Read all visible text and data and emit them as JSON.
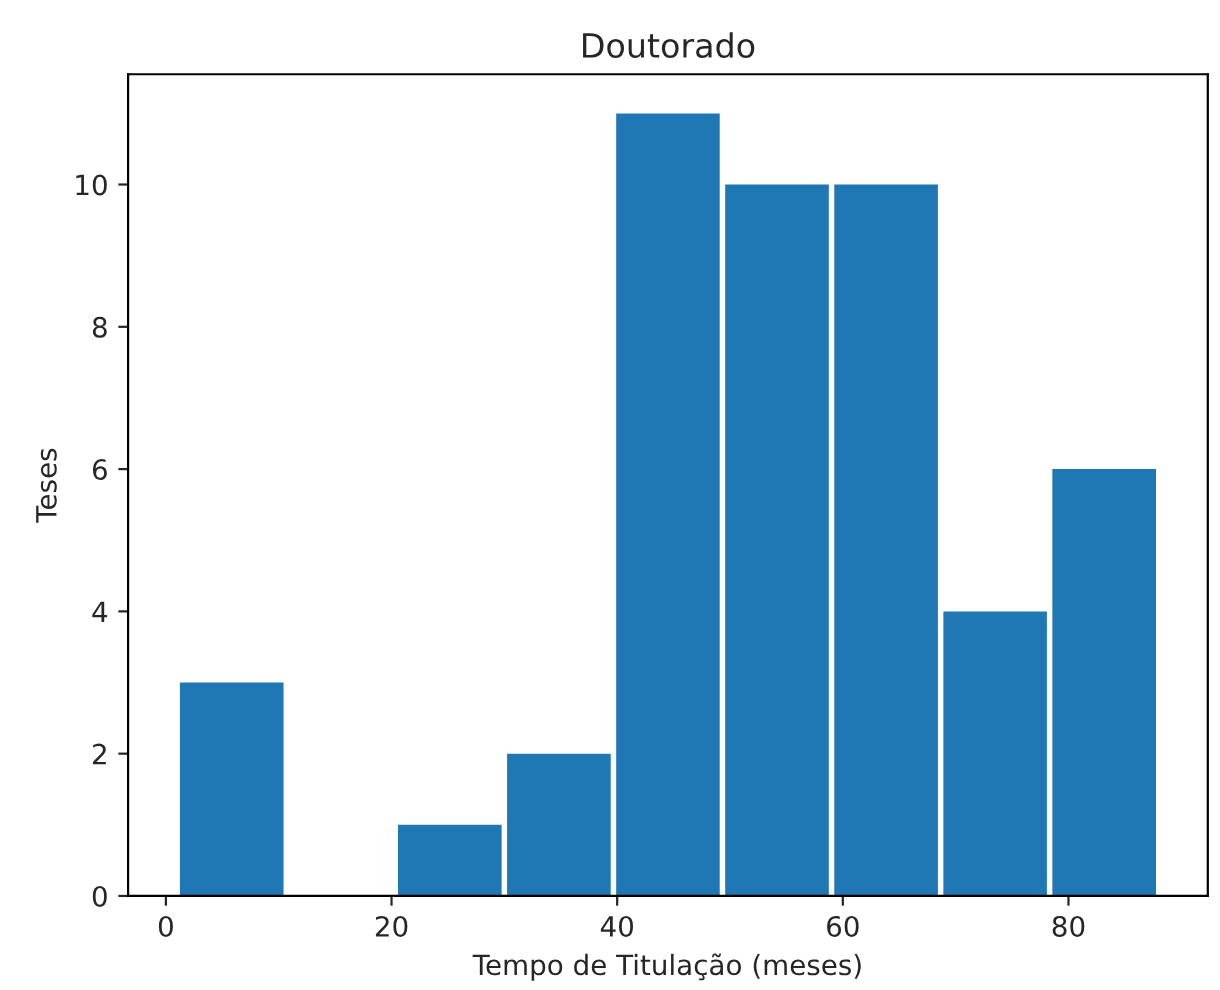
{
  "chart_data": {
    "type": "histogram",
    "title": "Doutorado",
    "xlabel": "Tempo de Titulação (meses)",
    "ylabel": "Teses",
    "bins": [
      1,
      10.67,
      20.33,
      30,
      39.67,
      49.33,
      59,
      68.67,
      78.33,
      88
    ],
    "values": [
      3,
      0,
      1,
      2,
      11,
      10,
      10,
      4,
      6
    ],
    "color": "#1f77b4",
    "xlim": [
      -3.35,
      92.35
    ],
    "xticks": [
      0,
      20,
      40,
      60,
      80
    ],
    "ylim": [
      0,
      11.55
    ],
    "yticks": [
      0,
      2,
      4,
      6,
      8,
      10
    ],
    "grid": false
  }
}
